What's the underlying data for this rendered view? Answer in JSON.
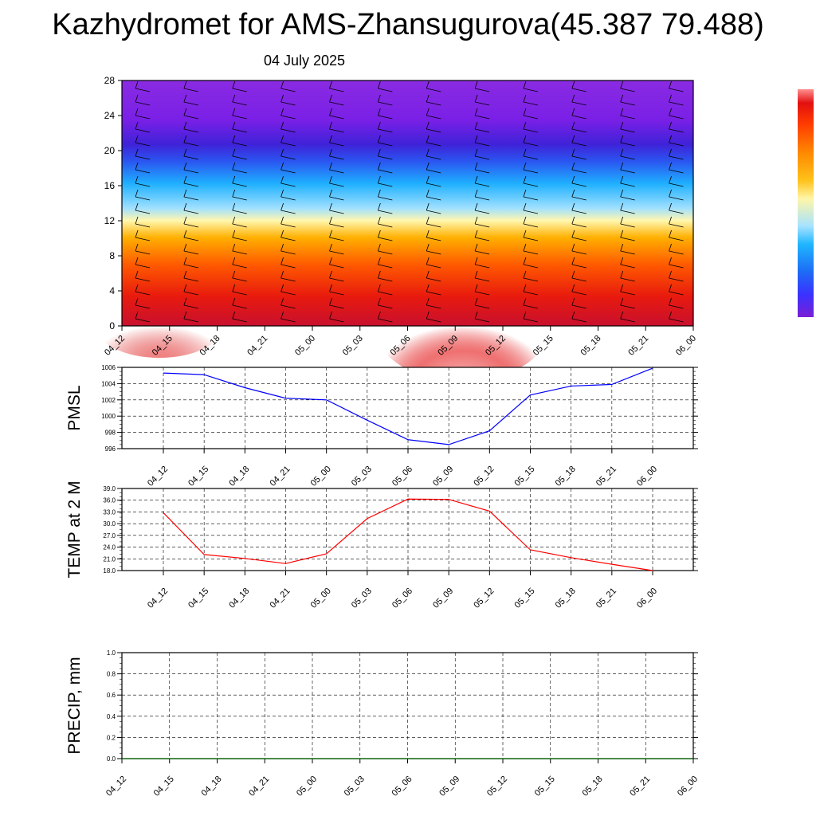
{
  "title": "Kazhydromet for AMS-Zhansugurova(45.387 79.488)",
  "subtitle": "04 July 2025",
  "chart_data": [
    {
      "type": "heatmap",
      "title": "",
      "x": [
        "04_12",
        "04_15",
        "04_18",
        "04_21",
        "05_00",
        "05_03",
        "05_06",
        "05_09",
        "05_12",
        "05_15",
        "05_18",
        "05_21",
        "06_00"
      ],
      "yticks": [
        0,
        4,
        8,
        12,
        16,
        20,
        24,
        28
      ],
      "ylim": [
        0,
        28
      ],
      "colorbar": [
        "#7a1fd6",
        "#3a32ff",
        "#1d6cf5",
        "#1fb6ff",
        "#a6e3ff",
        "#fff6a8",
        "#ffc21a",
        "#ff8a00",
        "#ff3a00",
        "#e21010",
        "#ff9090"
      ],
      "wind_barbs": true
    },
    {
      "type": "line",
      "ylabel": "PMSL",
      "x": [
        "04_12",
        "04_15",
        "04_18",
        "04_21",
        "05_00",
        "05_03",
        "05_06",
        "05_09",
        "05_12",
        "05_15",
        "05_18",
        "05_21",
        "06_00"
      ],
      "values": [
        1005.3,
        1005.1,
        1003.5,
        1002.2,
        1002.0,
        999.5,
        997.1,
        996.5,
        998.2,
        1002.6,
        1003.7,
        1003.9,
        1005.9
      ],
      "yticks": [
        "996",
        "998",
        "1000",
        "1002",
        "1004",
        "1006"
      ],
      "ylim": [
        996,
        1006
      ],
      "color": "#0000ff",
      "grid": true
    },
    {
      "type": "line",
      "ylabel": "TEMP at 2 M",
      "x": [
        "04_12",
        "04_15",
        "04_18",
        "04_21",
        "05_00",
        "05_03",
        "05_06",
        "05_09",
        "05_12",
        "05_15",
        "05_18",
        "05_21",
        "06_00"
      ],
      "values": [
        32.8,
        22.1,
        21.1,
        19.8,
        22.3,
        31.3,
        36.3,
        36.2,
        33.2,
        23.3,
        21.3,
        19.6,
        18.0
      ],
      "yticks": [
        "18.0",
        "21.0",
        "24.0",
        "27.0",
        "30.0",
        "33.0",
        "36.0",
        "39.0"
      ],
      "ylim": [
        18,
        39
      ],
      "color": "#ff0000",
      "grid": true
    },
    {
      "type": "line",
      "ylabel": "PRECIP, mm",
      "x": [
        "04_12",
        "04_15",
        "04_18",
        "04_21",
        "05_00",
        "05_03",
        "05_06",
        "05_09",
        "05_12",
        "05_15",
        "05_18",
        "05_21",
        "06_00"
      ],
      "values": [
        0,
        0,
        0,
        0,
        0,
        0,
        0,
        0,
        0,
        0,
        0,
        0,
        0
      ],
      "yticks": [
        "0.0",
        "0.2",
        "0.4",
        "0.6",
        "0.8",
        "1.0"
      ],
      "ylim": [
        0,
        1
      ],
      "color": "#006400",
      "grid": true
    }
  ]
}
